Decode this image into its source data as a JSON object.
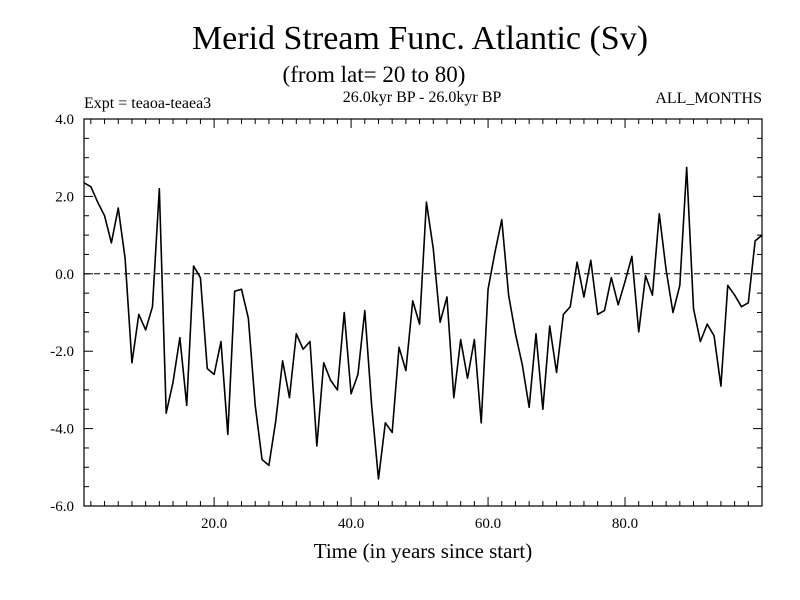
{
  "chart_data": {
    "type": "line",
    "title": "Merid Stream Func. Atlantic (Sv)",
    "subtitle": "(from lat= 20 to 80)",
    "left_label": "Expt = teaoa-teaea3",
    "center_label": "26.0kyr BP - 26.0kyr BP",
    "right_label": "ALL_MONTHS",
    "xlabel": "Time (in years since start)",
    "ylabel": "",
    "xlim": [
      1,
      100
    ],
    "ylim": [
      -6,
      4
    ],
    "x_ticks": [
      20,
      40,
      60,
      80
    ],
    "x_tick_labels": [
      "20.0",
      "40.0",
      "60.0",
      "80.0"
    ],
    "y_ticks": [
      -6,
      -4,
      -2,
      0,
      2,
      4
    ],
    "y_tick_labels": [
      "-6.0",
      "-4.0",
      "-2.0",
      "0.0",
      "2.0",
      "4.0"
    ],
    "reference_line": 0,
    "series": [
      {
        "name": "Atlantic",
        "x": [
          1,
          2,
          3,
          4,
          5,
          6,
          7,
          8,
          9,
          10,
          11,
          12,
          13,
          14,
          15,
          16,
          17,
          18,
          19,
          20,
          21,
          22,
          23,
          24,
          25,
          26,
          27,
          28,
          29,
          30,
          31,
          32,
          33,
          34,
          35,
          36,
          37,
          38,
          39,
          40,
          41,
          42,
          43,
          44,
          45,
          46,
          47,
          48,
          49,
          50,
          51,
          52,
          53,
          54,
          55,
          56,
          57,
          58,
          59,
          60,
          61,
          62,
          63,
          64,
          65,
          66,
          67,
          68,
          69,
          70,
          71,
          72,
          73,
          74,
          75,
          76,
          77,
          78,
          79,
          80,
          81,
          82,
          83,
          84,
          85,
          86,
          87,
          88,
          89,
          90,
          91,
          92,
          93,
          94,
          95,
          96,
          97,
          98,
          99,
          100
        ],
        "values": [
          2.35,
          2.25,
          1.85,
          1.5,
          0.8,
          1.7,
          0.4,
          -2.3,
          -1.05,
          -1.45,
          -0.85,
          2.2,
          -3.6,
          -2.8,
          -1.65,
          -3.4,
          0.2,
          -0.1,
          -2.45,
          -2.6,
          -1.75,
          -4.15,
          -0.45,
          -0.4,
          -1.15,
          -3.4,
          -4.8,
          -4.95,
          -3.8,
          -2.25,
          -3.2,
          -1.55,
          -1.95,
          -1.75,
          -4.45,
          -2.3,
          -2.75,
          -3.0,
          -1.0,
          -3.1,
          -2.6,
          -0.95,
          -3.4,
          -5.3,
          -3.85,
          -4.1,
          -1.9,
          -2.5,
          -0.7,
          -1.3,
          1.85,
          0.65,
          -1.25,
          -0.6,
          -3.2,
          -1.7,
          -2.7,
          -1.7,
          -3.85,
          -0.4,
          0.55,
          1.4,
          -0.55,
          -1.55,
          -2.35,
          -3.45,
          -1.55,
          -3.5,
          -1.35,
          -2.55,
          -1.05,
          -0.85,
          0.3,
          -0.6,
          0.35,
          -1.05,
          -0.95,
          -0.1,
          -0.8,
          -0.2,
          0.45,
          -1.5,
          -0.05,
          -0.55,
          1.55,
          0.1,
          -1.0,
          -0.3,
          2.75,
          -0.9,
          -1.75,
          -1.3,
          -1.6,
          -2.9,
          -0.3,
          -0.55,
          -0.85,
          -0.75,
          0.85,
          1.0
        ]
      }
    ]
  }
}
